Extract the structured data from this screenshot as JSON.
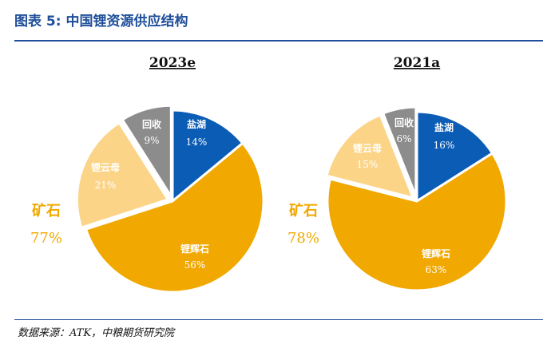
{
  "header": {
    "title": "图表 5: 中国锂资源供应结构"
  },
  "footer": {
    "source": "数据来源：ATK，中粮期货研究院"
  },
  "colors": {
    "brand": "#1f4e9a",
    "盐湖": "#0b5cb5",
    "锂辉石": "#f1a800",
    "锂云母": "#fbd487",
    "回收": "#8c8c8c"
  },
  "chart_data": [
    {
      "type": "pie",
      "title": "2023e",
      "categories": [
        "盐湖",
        "锂辉石",
        "锂云母",
        "回收"
      ],
      "values": [
        14,
        56,
        21,
        9
      ],
      "labels": [
        "14%",
        "56%",
        "21%",
        "9%"
      ],
      "annotation": {
        "name": "矿石",
        "value": "77%"
      }
    },
    {
      "type": "pie",
      "title": "2021a",
      "categories": [
        "盐湖",
        "锂辉石",
        "锂云母",
        "回收"
      ],
      "values": [
        16,
        63,
        15,
        6
      ],
      "labels": [
        "16%",
        "63%",
        "15%",
        "6%"
      ],
      "annotation": {
        "name": "矿石",
        "value": "78%"
      }
    }
  ]
}
